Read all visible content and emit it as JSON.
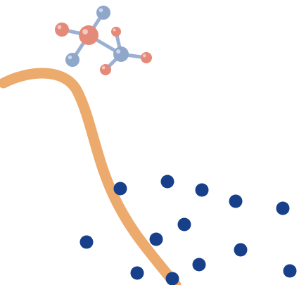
{
  "colors": {
    "background": "#ffffff",
    "curve": "#ecaa6c",
    "dot": "#173f8a",
    "atom_red": "#e58a78",
    "atom_blue": "#8ea7cb",
    "bond": "#9bb0d3"
  },
  "icons": {
    "molecule": "molecule-icon",
    "curve": "curve-line",
    "dot": "dot-marker"
  }
}
